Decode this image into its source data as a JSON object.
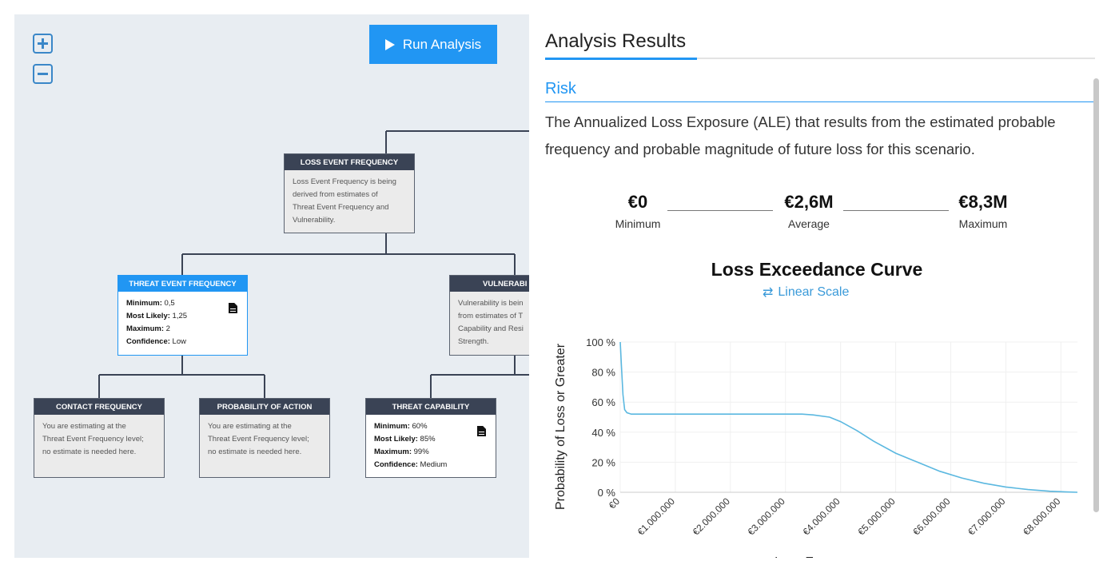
{
  "canvas": {
    "zoom_in_icon": "plus-square-icon",
    "zoom_out_icon": "minus-square-icon",
    "run_button": {
      "label": "Run Analysis",
      "icon": "play-icon"
    },
    "nodes": {
      "lef": {
        "title": "LOSS EVENT FREQUENCY",
        "description": [
          "Loss Event Frequency is being",
          "derived from estimates of",
          "Threat Event Frequency and",
          "Vulnerability."
        ]
      },
      "tef": {
        "title": "THREAT EVENT FREQUENCY",
        "stats": [
          {
            "label": "Minimum:",
            "value": "0,5"
          },
          {
            "label": "Most Likely:",
            "value": "1,25"
          },
          {
            "label": "Maximum:",
            "value": "2"
          },
          {
            "label": "Confidence:",
            "value": "Low"
          }
        ],
        "icon": "document-icon"
      },
      "vuln": {
        "title": "VULNERABI",
        "description": [
          "Vulnerability is bein",
          "from estimates of T",
          "Capability and Resi",
          "Strength."
        ]
      },
      "cf": {
        "title": "CONTACT FREQUENCY",
        "description": [
          "You are estimating at the",
          "Threat Event Frequency level;",
          "no estimate is needed here."
        ]
      },
      "poa": {
        "title": "PROBABILITY OF ACTION",
        "description": [
          "You are estimating at the",
          "Threat Event Frequency level;",
          "no estimate is needed here."
        ]
      },
      "tc": {
        "title": "THREAT CAPABILITY",
        "stats": [
          {
            "label": "Minimum:",
            "value": "60%"
          },
          {
            "label": "Most Likely:",
            "value": "85%"
          },
          {
            "label": "Maximum:",
            "value": "99%"
          },
          {
            "label": "Confidence:",
            "value": "Medium"
          }
        ],
        "icon": "document-icon"
      }
    }
  },
  "panel": {
    "title": "Analysis Results",
    "tab": "Risk",
    "description": "The Annualized Loss Exposure (ALE) that results from the estimated probable frequency and probable magnitude of future loss for this scenario.",
    "stats": {
      "min": {
        "value": "€0",
        "label": "Minimum"
      },
      "avg": {
        "value": "€2,6M",
        "label": "Average"
      },
      "max": {
        "value": "€8,3M",
        "label": "Maximum"
      }
    },
    "chart_title": "Loss Exceedance Curve",
    "scale_toggle": "Linear Scale",
    "scale_icon": "swap-arrows-icon"
  },
  "chart_data": {
    "type": "line",
    "title": "Loss Exceedance Curve",
    "xlabel": "Loss Exposure",
    "ylabel": "Probability of Loss or Greater",
    "x_ticks": [
      0,
      1000000,
      2000000,
      3000000,
      4000000,
      5000000,
      6000000,
      7000000,
      8000000
    ],
    "x_tick_labels": [
      "€0",
      "€1.000.000",
      "€2.000.000",
      "€3.000.000",
      "€4.000.000",
      "€5.000.000",
      "€6.000.000",
      "€7.000.000",
      "€8.000.000"
    ],
    "y_ticks": [
      0,
      20,
      40,
      60,
      80,
      100
    ],
    "y_tick_labels": [
      "0 %",
      "20 %",
      "40 %",
      "60 %",
      "80 %",
      "100 %"
    ],
    "xlim": [
      0,
      8300000
    ],
    "ylim": [
      0,
      100
    ],
    "grid": true,
    "series": [
      {
        "color": "#5bb8e0",
        "x": [
          0,
          20000,
          50000,
          80000,
          120000,
          200000,
          500000,
          1000000,
          2000000,
          3000000,
          3300000,
          3500000,
          3800000,
          4000000,
          4300000,
          4600000,
          5000000,
          5400000,
          5800000,
          6200000,
          6600000,
          7000000,
          7400000,
          7800000,
          8100000,
          8300000
        ],
        "y": [
          100,
          85,
          65,
          55,
          53,
          52,
          52,
          52,
          52,
          52,
          52,
          51.5,
          50,
          47,
          41,
          34,
          26,
          20,
          14,
          9.5,
          6,
          3.5,
          1.8,
          0.7,
          0.2,
          0
        ]
      }
    ]
  }
}
